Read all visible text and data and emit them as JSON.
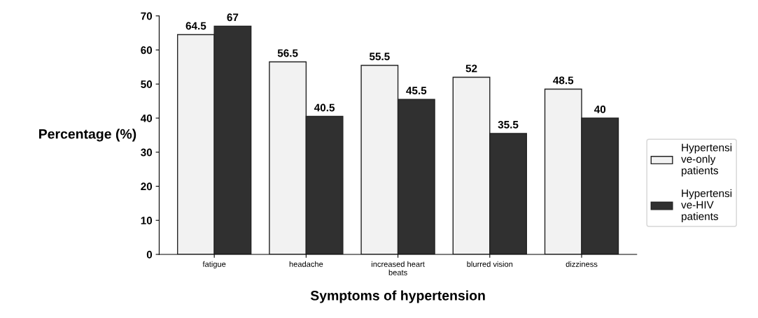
{
  "chart_data": {
    "type": "bar",
    "xlabel": "Symptoms of hypertension",
    "ylabel": "Percentage (%)",
    "categories": [
      "fatigue",
      "headache",
      "increased heart\nbeats",
      "blurred vision",
      "dizziness"
    ],
    "series": [
      {
        "name": "Hypertensi\nve-only\npatients",
        "color": "#f2f2f2",
        "values": [
          64.5,
          56.5,
          55.5,
          52,
          48.5
        ]
      },
      {
        "name": "Hypertensi\nve-HIV\npatients",
        "color": "#303030",
        "values": [
          67,
          40.5,
          45.5,
          35.5,
          40
        ]
      }
    ],
    "ylim": [
      0,
      70
    ],
    "yticks": [
      0,
      10,
      20,
      30,
      40,
      50,
      60,
      70
    ],
    "data_labels": true,
    "grid": false,
    "legend": "right"
  }
}
